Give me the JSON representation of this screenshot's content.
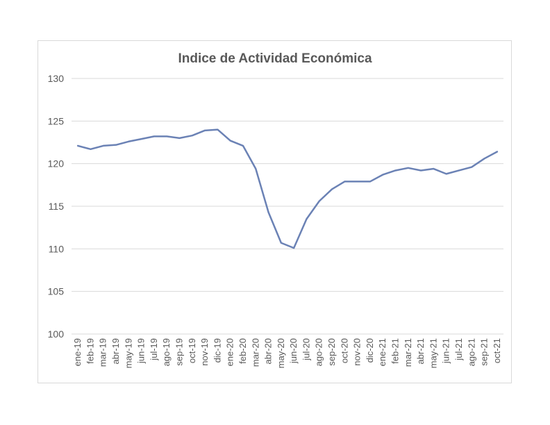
{
  "chart_data": {
    "type": "line",
    "title": "Indice de Actividad Económica",
    "xlabel": "",
    "ylabel": "",
    "ylim": [
      100,
      130
    ],
    "yticks": [
      100,
      105,
      110,
      115,
      120,
      125,
      130
    ],
    "grid": "horizontal",
    "legend": "none",
    "line_color": "#6b82b5",
    "categories": [
      "ene-19",
      "feb-19",
      "mar-19",
      "abr-19",
      "may-19",
      "jun-19",
      "jul-19",
      "ago-19",
      "sep-19",
      "oct-19",
      "nov-19",
      "dic-19",
      "ene-20",
      "feb-20",
      "mar-20",
      "abr-20",
      "may-20",
      "jun-20",
      "jul-20",
      "ago-20",
      "sep-20",
      "oct-20",
      "nov-20",
      "dic-20",
      "ene-21",
      "feb-21",
      "mar-21",
      "abr-21",
      "may-21",
      "jun-21",
      "jul-21",
      "ago-21",
      "sep-21",
      "oct-21"
    ],
    "series": [
      {
        "values": [
          122.1,
          121.7,
          122.1,
          122.2,
          122.6,
          122.9,
          123.2,
          123.2,
          123.0,
          123.3,
          123.9,
          124.0,
          122.7,
          122.1,
          119.4,
          114.3,
          110.7,
          110.1,
          113.5,
          115.6,
          117.0,
          117.9,
          117.9,
          117.9,
          118.7,
          119.2,
          119.5,
          119.2,
          119.4,
          118.8,
          119.2,
          119.6,
          120.6,
          121.4
        ]
      }
    ]
  }
}
